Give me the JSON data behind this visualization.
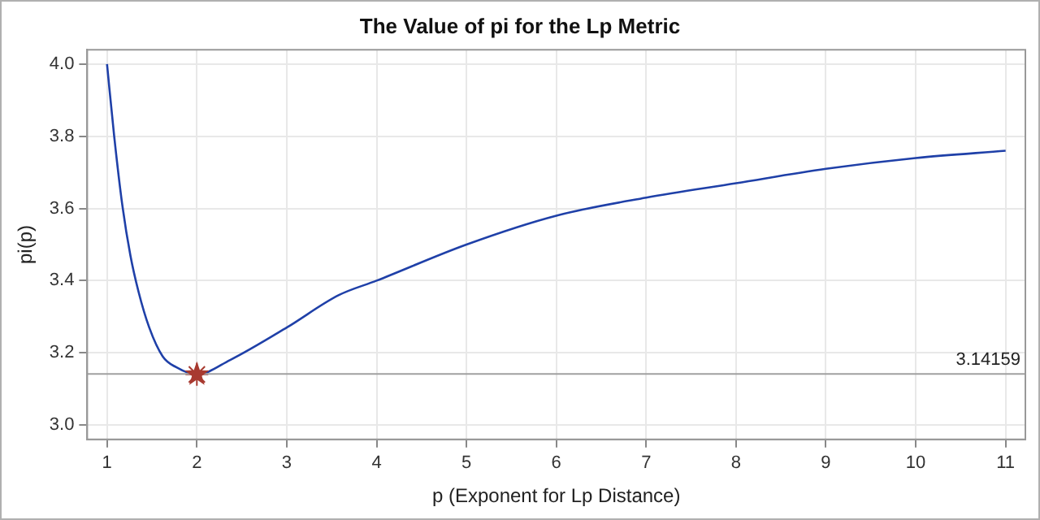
{
  "chart_data": {
    "type": "line",
    "title": "The Value of pi for the Lp Metric",
    "xlabel": "p (Exponent for Lp Distance)",
    "ylabel": "pi(p)",
    "series": [
      {
        "color": "#1f40a8",
        "marker": "none",
        "x": [
          1,
          1.08,
          1.17,
          1.26,
          1.35,
          1.47,
          1.62,
          1.77,
          2,
          2.37,
          3,
          3.58,
          4,
          5,
          6,
          7,
          8,
          9,
          10,
          11
        ],
        "values": [
          4.0,
          3.8,
          3.61,
          3.47,
          3.37,
          3.27,
          3.19,
          3.16,
          3.14,
          3.18,
          3.27,
          3.36,
          3.4,
          3.5,
          3.58,
          3.63,
          3.67,
          3.71,
          3.74,
          3.76
        ]
      },
      {
        "type": "scatter",
        "color": "#a83a30",
        "marker": "star",
        "x": [
          2
        ],
        "values": [
          3.14
        ]
      }
    ],
    "xlim": [
      0.78,
      11.22
    ],
    "xticks": [
      1,
      2,
      3,
      4,
      5,
      6,
      7,
      8,
      9,
      10,
      11
    ],
    "ylim": [
      2.96,
      4.04
    ],
    "yticks": [
      {
        "value": 3,
        "label": "3.0"
      },
      {
        "value": 3.2,
        "label": "3.2"
      },
      {
        "value": 3.4,
        "label": "3.4"
      },
      {
        "value": 3.6,
        "label": "3.6"
      },
      {
        "value": 3.8,
        "label": "3.8"
      },
      {
        "value": 4,
        "label": "4.0"
      }
    ],
    "ref_lines": [
      {
        "axis": "y",
        "value": 3.14159,
        "label": "3.14159",
        "color": "#a0a0a0"
      }
    ],
    "grid": true,
    "legend": false
  }
}
